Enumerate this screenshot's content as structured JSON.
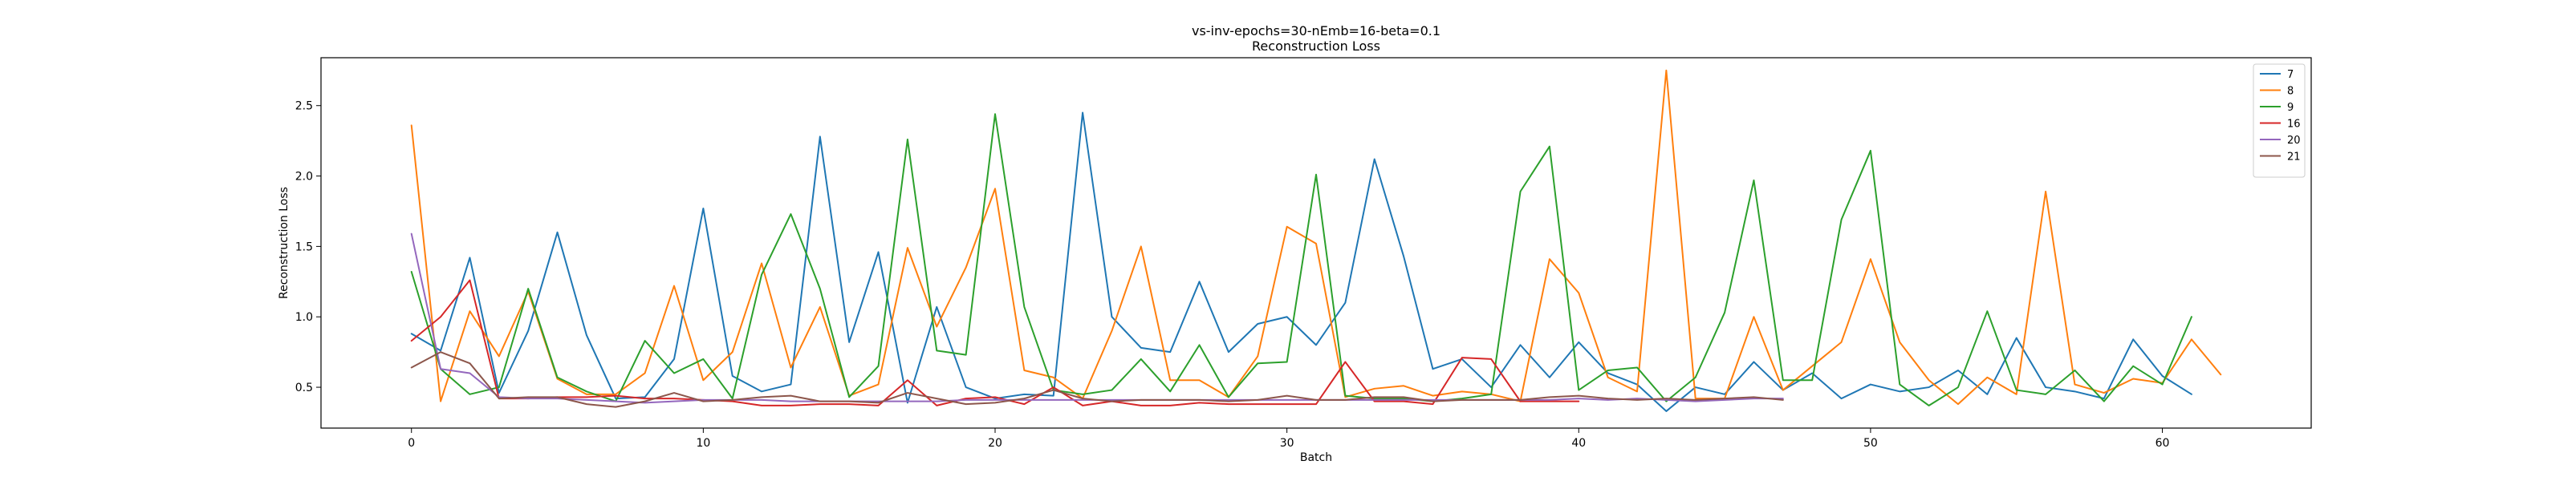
{
  "chart_data": {
    "type": "line",
    "title": "vs-inv-epochs=30-nEmb=16-beta=0.1",
    "subtitle": "Reconstruction Loss",
    "xlabel": "Batch",
    "ylabel": "Reconstruction Loss",
    "xlim": [
      -3.1,
      65.1
    ],
    "ylim": [
      0.21,
      2.84
    ],
    "xticks": [
      0,
      10,
      20,
      30,
      40,
      50,
      60
    ],
    "yticks": [
      0.5,
      1.0,
      1.5,
      2.0,
      2.5
    ],
    "xtick_labels": [
      "0",
      "10",
      "20",
      "30",
      "40",
      "50",
      "60"
    ],
    "ytick_labels": [
      "0.5",
      "1.0",
      "1.5",
      "2.0",
      "2.5"
    ],
    "grid": false,
    "legend_position": "top-right",
    "series": [
      {
        "name": "7",
        "color": "#1f77b4",
        "values": [
          0.88,
          0.76,
          1.42,
          0.46,
          0.9,
          1.6,
          0.87,
          0.42,
          0.43,
          0.7,
          1.77,
          0.58,
          0.47,
          0.52,
          2.28,
          0.82,
          1.46,
          0.39,
          1.07,
          0.5,
          0.42,
          0.45,
          0.44,
          2.45,
          1.0,
          0.78,
          0.75,
          1.25,
          0.75,
          0.95,
          1.0,
          0.8,
          1.1,
          2.12,
          1.43,
          0.63,
          0.7,
          0.5,
          0.8,
          0.57,
          0.82,
          0.6,
          0.52,
          0.33,
          0.5,
          0.45,
          0.68,
          0.48,
          0.6,
          0.42,
          0.52,
          0.47,
          0.5,
          0.62,
          0.45,
          0.85,
          0.5,
          0.47,
          0.42,
          0.84,
          0.58,
          0.45
        ]
      },
      {
        "name": "8",
        "color": "#ff7f0e",
        "values": [
          2.36,
          0.4,
          1.04,
          0.72,
          1.18,
          0.56,
          0.45,
          0.45,
          0.6,
          1.22,
          0.55,
          0.75,
          1.38,
          0.64,
          1.07,
          0.44,
          0.52,
          1.49,
          0.93,
          1.35,
          1.91,
          0.62,
          0.57,
          0.42,
          0.9,
          1.5,
          0.55,
          0.55,
          0.43,
          0.72,
          1.64,
          1.52,
          0.43,
          0.49,
          0.51,
          0.44,
          0.47,
          0.45,
          0.4,
          1.41,
          1.17,
          0.57,
          0.47,
          2.75,
          0.42,
          0.42,
          1.0,
          0.48,
          0.65,
          0.82,
          1.41,
          0.82,
          0.55,
          0.38,
          0.57,
          0.45,
          1.89,
          0.52,
          0.46,
          0.56,
          0.53,
          0.84,
          0.59
        ]
      },
      {
        "name": "9",
        "color": "#2ca02c",
        "values": [
          1.32,
          0.63,
          0.45,
          0.5,
          1.2,
          0.57,
          0.47,
          0.4,
          0.83,
          0.6,
          0.7,
          0.42,
          1.3,
          1.73,
          1.2,
          0.43,
          0.65,
          2.26,
          0.76,
          0.73,
          2.44,
          1.07,
          0.48,
          0.45,
          0.48,
          0.7,
          0.47,
          0.8,
          0.43,
          0.67,
          0.68,
          2.01,
          0.44,
          0.42,
          0.42,
          0.4,
          0.42,
          0.45,
          1.89,
          2.21,
          0.48,
          0.62,
          0.64,
          0.4,
          0.57,
          1.03,
          1.97,
          0.55,
          0.55,
          1.69,
          2.18,
          0.52,
          0.37,
          0.5,
          1.04,
          0.48,
          0.45,
          0.62,
          0.4,
          0.65,
          0.52,
          1.0
        ]
      },
      {
        "name": "16",
        "color": "#d62728",
        "values": [
          0.83,
          1.0,
          1.26,
          0.42,
          0.42,
          0.43,
          0.43,
          0.44,
          0.42,
          0.42,
          0.41,
          0.4,
          0.37,
          0.37,
          0.38,
          0.38,
          0.37,
          0.55,
          0.37,
          0.42,
          0.43,
          0.38,
          0.5,
          0.37,
          0.4,
          0.37,
          0.37,
          0.39,
          0.38,
          0.38,
          0.38,
          0.38,
          0.68,
          0.4,
          0.4,
          0.38,
          0.71,
          0.7,
          0.4,
          0.4,
          0.4
        ]
      },
      {
        "name": "20",
        "color": "#9467bd",
        "values": [
          1.59,
          0.63,
          0.6,
          0.43,
          0.42,
          0.42,
          0.41,
          0.4,
          0.39,
          0.4,
          0.41,
          0.41,
          0.41,
          0.4,
          0.4,
          0.4,
          0.4,
          0.4,
          0.4,
          0.41,
          0.41,
          0.41,
          0.41,
          0.41,
          0.41,
          0.41,
          0.41,
          0.41,
          0.41,
          0.41,
          0.41,
          0.41,
          0.41,
          0.41,
          0.41,
          0.41,
          0.41,
          0.41,
          0.41,
          0.41,
          0.42,
          0.41,
          0.42,
          0.41,
          0.4,
          0.41,
          0.42,
          0.42
        ]
      },
      {
        "name": "21",
        "color": "#8c564b",
        "values": [
          0.64,
          0.75,
          0.67,
          0.42,
          0.43,
          0.43,
          0.38,
          0.36,
          0.4,
          0.46,
          0.4,
          0.41,
          0.43,
          0.44,
          0.4,
          0.4,
          0.39,
          0.46,
          0.42,
          0.38,
          0.39,
          0.42,
          0.48,
          0.42,
          0.4,
          0.41,
          0.41,
          0.41,
          0.4,
          0.41,
          0.44,
          0.41,
          0.41,
          0.43,
          0.43,
          0.4,
          0.41,
          0.41,
          0.41,
          0.43,
          0.44,
          0.42,
          0.41,
          0.42,
          0.41,
          0.42,
          0.43,
          0.41
        ]
      }
    ]
  }
}
